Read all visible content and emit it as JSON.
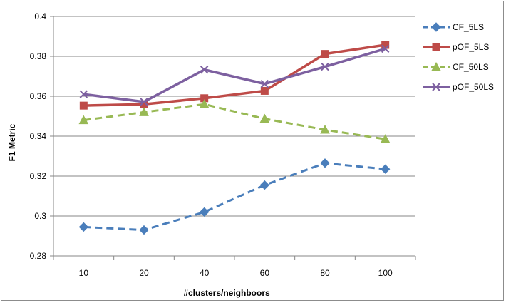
{
  "chart_data": {
    "type": "line",
    "title": "",
    "xlabel": "#clusters/neighboors",
    "ylabel": "F1 Metric",
    "categories": [
      "10",
      "20",
      "40",
      "60",
      "80",
      "100"
    ],
    "ylim": [
      0.28,
      0.4
    ],
    "yticks": [
      "0.28",
      "0.3",
      "0.32",
      "0.34",
      "0.36",
      "0.38",
      "0.4"
    ],
    "grid": "horizontal",
    "legend_position": "right",
    "series": [
      {
        "name": "CF_5LS",
        "color": "#4a7ebb",
        "dash": "dashed",
        "marker": "diamond",
        "values": [
          0.2945,
          0.293,
          0.302,
          0.3155,
          0.3265,
          0.3235
        ]
      },
      {
        "name": "pOF_5LS",
        "color": "#be4b48",
        "dash": "solid",
        "marker": "square",
        "values": [
          0.3553,
          0.356,
          0.359,
          0.3627,
          0.3812,
          0.3857
        ]
      },
      {
        "name": "CF_50LS",
        "color": "#98b954",
        "dash": "dashed",
        "marker": "triangle",
        "values": [
          0.348,
          0.352,
          0.356,
          0.3487,
          0.3432,
          0.3385
        ]
      },
      {
        "name": "pOF_50LS",
        "color": "#7d60a0",
        "dash": "solid",
        "marker": "x",
        "values": [
          0.361,
          0.3572,
          0.3733,
          0.3662,
          0.3748,
          0.3838
        ]
      }
    ]
  }
}
